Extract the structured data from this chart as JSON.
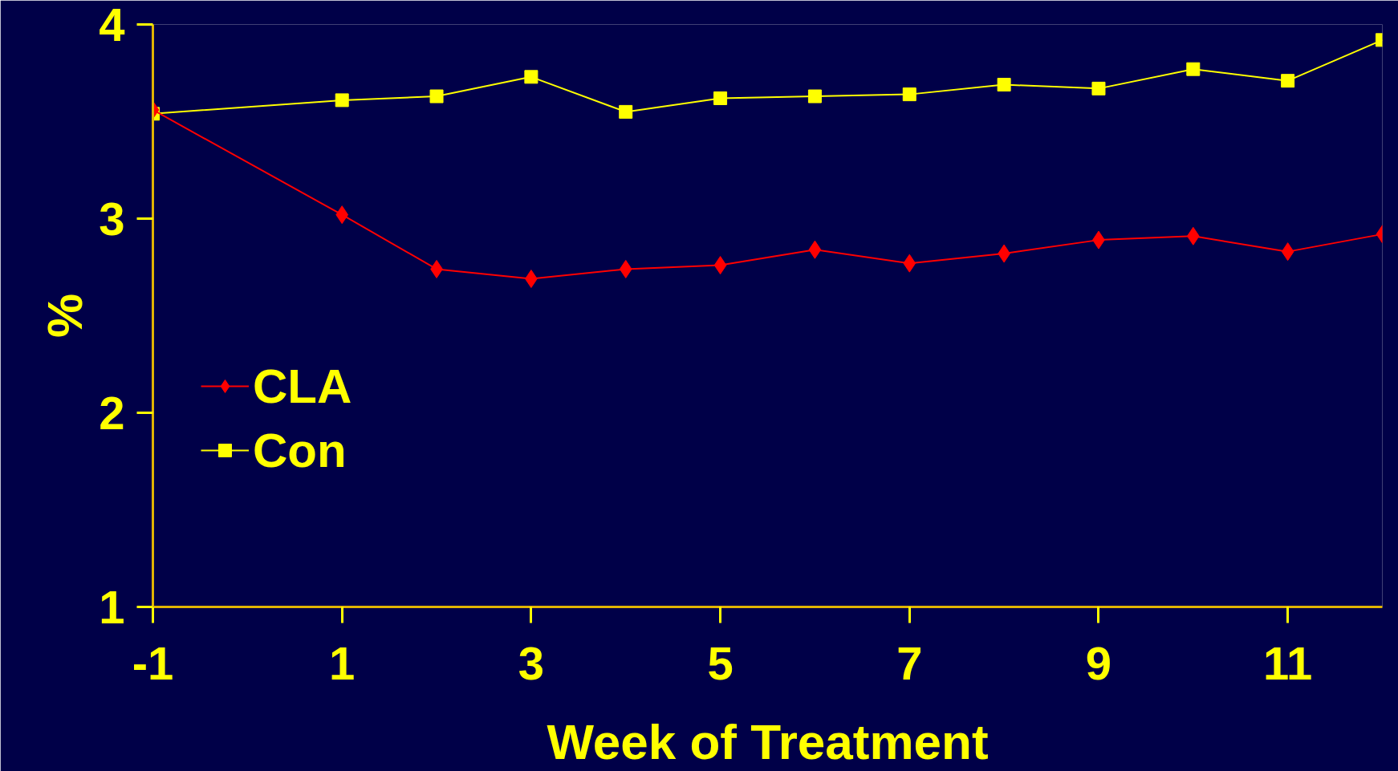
{
  "chart_data": {
    "type": "line",
    "xlabel": "Week of Treatment",
    "ylabel": "%",
    "x": [
      -1,
      1,
      2,
      3,
      4,
      5,
      6,
      7,
      8,
      9,
      10,
      11,
      12
    ],
    "series": [
      {
        "name": "CLA",
        "color": "#ff0000",
        "marker": "diamond",
        "values": [
          3.56,
          3.02,
          2.74,
          2.69,
          2.74,
          2.76,
          2.84,
          2.77,
          2.82,
          2.89,
          2.91,
          2.83,
          2.92
        ]
      },
      {
        "name": "Con",
        "color": "#ffff00",
        "marker": "square",
        "values": [
          3.54,
          3.61,
          3.63,
          3.73,
          3.55,
          3.62,
          3.63,
          3.64,
          3.69,
          3.67,
          3.77,
          3.71,
          3.92
        ]
      }
    ],
    "xlim": [
      -1,
      12
    ],
    "ylim": [
      1,
      4
    ],
    "xticks": [
      -1,
      1,
      3,
      5,
      7,
      9,
      11
    ],
    "yticks": [
      1,
      2,
      3,
      4
    ],
    "grid": false,
    "legend": "left",
    "line_style": "solid"
  }
}
